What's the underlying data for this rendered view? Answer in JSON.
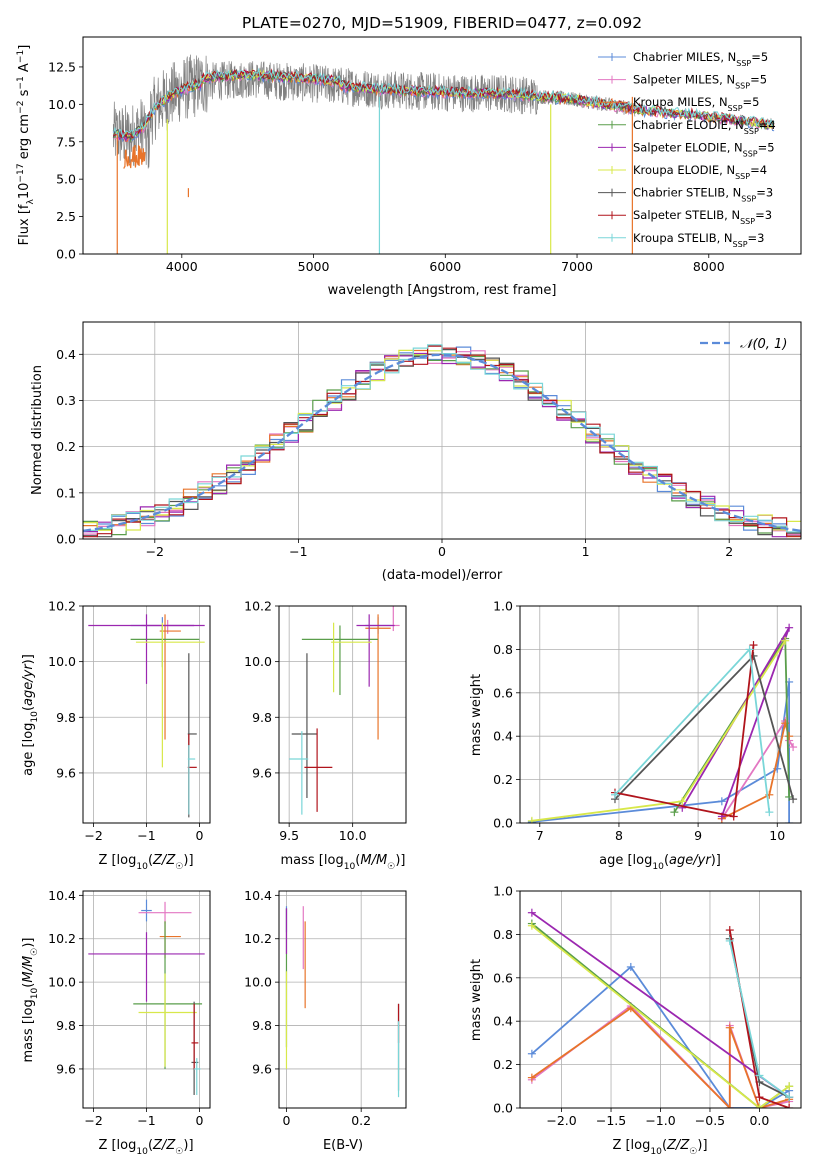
{
  "title": "PLATE=0270, MJD=51909, FIBERID=0477, z=0.092",
  "colors": {
    "models": [
      "#5b8bd9",
      "#e377c2",
      "#e8742a",
      "#5a9e4b",
      "#9b27b0",
      "#d8e84a",
      "#555555",
      "#b0141c",
      "#7ad6d8"
    ],
    "spectrum": "#808080",
    "normal_curve": "#5b8bd9"
  },
  "chart_data": [
    {
      "id": "spectrum",
      "type": "line",
      "title": "PLATE=0270, MJD=51909, FIBERID=0477, z=0.092",
      "xlabel": "wavelength [Angstrom, rest frame]",
      "ylabel": "Flux [f_λ 10^-17 erg cm^-2 s^-1 A^-1]",
      "xlim": [
        3250,
        8700
      ],
      "ylim": [
        0,
        14.5
      ],
      "xticks": [
        4000,
        5000,
        6000,
        7000,
        8000
      ],
      "xtick_labels": [
        "4000",
        "5000",
        "6000",
        "7000",
        "8000"
      ],
      "yticks": [
        0,
        2.5,
        5,
        7.5,
        10,
        12.5
      ],
      "ytick_labels": [
        "0.0",
        "2.5",
        "5.0",
        "7.5",
        "10.0",
        "12.5"
      ],
      "grid": false,
      "legend_position": "top-right",
      "legend": [
        {
          "label": "Chabrier MILES, N",
          "sub": "SSP",
          "suffix": "=5"
        },
        {
          "label": "Salpeter MILES, N",
          "sub": "SSP",
          "suffix": "=5"
        },
        {
          "label": "Kroupa MILES, N",
          "sub": "SSP",
          "suffix": "=5"
        },
        {
          "label": "Chabrier ELODIE, N",
          "sub": "SSP",
          "suffix": "=4"
        },
        {
          "label": "Salpeter ELODIE, N",
          "sub": "SSP",
          "suffix": "=5"
        },
        {
          "label": "Kroupa ELODIE, N",
          "sub": "SSP",
          "suffix": "=4"
        },
        {
          "label": "Chabrier STELIB, N",
          "sub": "SSP",
          "suffix": "=3"
        },
        {
          "label": "Salpeter STELIB, N",
          "sub": "SSP",
          "suffix": "=3"
        },
        {
          "label": "Kroupa STELIB, N",
          "sub": "SSP",
          "suffix": "=3"
        }
      ],
      "continuum": {
        "x": [
          3500,
          3600,
          3700,
          3800,
          3900,
          4000,
          4200,
          4500,
          5000,
          5500,
          6000,
          6500,
          7000,
          7500,
          8000,
          8500
        ],
        "y": [
          8.0,
          7.8,
          8.4,
          9.8,
          10.5,
          11.0,
          11.5,
          11.7,
          11.4,
          11.0,
          10.8,
          10.7,
          10.3,
          9.6,
          9.2,
          8.6
        ]
      }
    },
    {
      "id": "residuals",
      "type": "step",
      "xlabel": "(data-model)/error",
      "ylabel": "Normed distribution",
      "xlim": [
        -2.5,
        2.5
      ],
      "ylim": [
        0,
        0.47
      ],
      "xticks": [
        -2,
        -1,
        0,
        1,
        2
      ],
      "xtick_labels": [
        "−2",
        "−1",
        "0",
        "1",
        "2"
      ],
      "yticks": [
        0,
        0.1,
        0.2,
        0.3,
        0.4
      ],
      "ytick_labels": [
        "0.0",
        "0.1",
        "0.2",
        "0.3",
        "0.4"
      ],
      "grid": true,
      "legend_position": "top-right",
      "legend": [
        "𝒩(0, 1)"
      ],
      "bin_width": 0.1,
      "normal": {
        "mean": 0,
        "sigma": 1
      }
    },
    {
      "id": "age_vs_Z",
      "type": "errorbar",
      "xlabel": "Z [log10(Z/Z☉)]",
      "ylabel": "age [log10(age/yr)]",
      "xlim": [
        -2.2,
        0.2
      ],
      "ylim": [
        9.42,
        10.2
      ],
      "xticks": [
        -2,
        -1,
        0
      ],
      "xtick_labels": [
        "−2",
        "−1",
        "0"
      ],
      "yticks": [
        9.6,
        9.8,
        10.0,
        10.2
      ],
      "ytick_labels": [
        "9.6",
        "9.8",
        "10.0",
        "10.2"
      ],
      "grid": true,
      "points": [
        {
          "x": -0.7,
          "xerr": [
            0.6,
            0.6
          ],
          "y": 10.13,
          "yerr": [
            0.02,
            0.03
          ]
        },
        {
          "x": -0.6,
          "xerr": [
            0.5,
            0.5
          ],
          "y": 10.13,
          "yerr": [
            0.03,
            0.02
          ]
        },
        {
          "x": -0.65,
          "xerr": [
            0.1,
            0.3
          ],
          "y": 10.11,
          "yerr": [
            0.39,
            0.06
          ]
        },
        {
          "x": -0.7,
          "xerr": [
            0.6,
            0.7
          ],
          "y": 10.08,
          "yerr": [
            0.1,
            0.05
          ]
        },
        {
          "x": -1.0,
          "xerr": [
            1.1,
            1.1
          ],
          "y": 10.13,
          "yerr": [
            0.21,
            0.04
          ]
        },
        {
          "x": -0.7,
          "xerr": [
            0.5,
            0.8
          ],
          "y": 10.07,
          "yerr": [
            0.45,
            0.07
          ]
        },
        {
          "x": -0.2,
          "xerr": [
            0.02,
            0.15
          ],
          "y": 9.74,
          "yerr": [
            0.3,
            0.29
          ]
        },
        {
          "x": -0.2,
          "xerr": [
            0.02,
            0.15
          ],
          "y": 9.62,
          "yerr": [
            0.17,
            0.12
          ]
        },
        {
          "x": -0.2,
          "xerr": [
            0.02,
            0.12
          ],
          "y": 9.65,
          "yerr": [
            0.2,
            0.05
          ]
        }
      ]
    },
    {
      "id": "age_vs_mass",
      "type": "errorbar",
      "xlabel": "mass [log10(M/M☉)]",
      "ylabel": "",
      "xlim": [
        9.42,
        10.42
      ],
      "ylim": [
        9.42,
        10.2
      ],
      "xticks": [
        9.5,
        10.0
      ],
      "xtick_labels": [
        "9.5",
        "10.0"
      ],
      "yticks": [
        9.6,
        9.8,
        10.0,
        10.2
      ],
      "ytick_labels": [
        "9.6",
        "9.8",
        "10.0",
        "10.2"
      ],
      "grid": true,
      "points": [
        {
          "x": 10.2,
          "xerr": [
            0.1,
            0.1
          ],
          "y": 10.13,
          "yerr": [
            0.03,
            0.03
          ]
        },
        {
          "x": 10.32,
          "xerr": [
            0.02,
            0.05
          ],
          "y": 10.13,
          "yerr": [
            0.02,
            0.1
          ]
        },
        {
          "x": 10.2,
          "xerr": [
            0.1,
            0.1
          ],
          "y": 10.12,
          "yerr": [
            0.4,
            0.05
          ]
        },
        {
          "x": 9.9,
          "xerr": [
            0.3,
            0.3
          ],
          "y": 10.08,
          "yerr": [
            0.2,
            0.05
          ]
        },
        {
          "x": 10.13,
          "xerr": [
            0.1,
            0.2
          ],
          "y": 10.13,
          "yerr": [
            0.22,
            0.04
          ]
        },
        {
          "x": 9.85,
          "xerr": [
            0.02,
            0.3
          ],
          "y": 10.07,
          "yerr": [
            0.18,
            0.07
          ]
        },
        {
          "x": 9.64,
          "xerr": [
            0.12,
            0.08
          ],
          "y": 9.74,
          "yerr": [
            0.23,
            0.29
          ]
        },
        {
          "x": 9.72,
          "xerr": [
            0.1,
            0.12
          ],
          "y": 9.62,
          "yerr": [
            0.16,
            0.14
          ]
        },
        {
          "x": 9.6,
          "xerr": [
            0.1,
            0.05
          ],
          "y": 9.65,
          "yerr": [
            0.2,
            0.1
          ]
        }
      ]
    },
    {
      "id": "weight_vs_age",
      "type": "line",
      "xlabel": "age [log10(age/yr)]",
      "ylabel": "mass weight",
      "xlim": [
        6.75,
        10.3
      ],
      "ylim": [
        0,
        1.0
      ],
      "xticks": [
        7,
        8,
        9,
        10
      ],
      "xtick_labels": [
        "7",
        "8",
        "9",
        "10"
      ],
      "yticks": [
        0,
        0.2,
        0.4,
        0.6,
        0.8,
        1.0
      ],
      "ytick_labels": [
        "0.0",
        "0.2",
        "0.4",
        "0.6",
        "0.8",
        "1.0"
      ],
      "grid": true,
      "series": [
        {
          "x": [
            6.9,
            9.3,
            10.0,
            10.15,
            10.15
          ],
          "y": [
            0.005,
            0.1,
            0.25,
            0.65,
            0.0
          ]
        },
        {
          "x": [
            9.3,
            10.1,
            10.15,
            10.2
          ],
          "y": [
            0.02,
            0.47,
            0.38,
            0.35
          ]
        },
        {
          "x": [
            9.3,
            9.9,
            10.1,
            10.15
          ],
          "y": [
            0.02,
            0.13,
            0.46,
            0.4
          ]
        },
        {
          "x": [
            8.7,
            10.1,
            10.15
          ],
          "y": [
            0.05,
            0.85,
            0.12
          ]
        },
        {
          "x": [
            9.3,
            10.15,
            8.8
          ],
          "y": [
            0.03,
            0.9,
            0.07
          ]
        },
        {
          "x": [
            6.9,
            8.8,
            10.1
          ],
          "y": [
            0.01,
            0.1,
            0.84
          ]
        },
        {
          "x": [
            7.95,
            9.7,
            10.2
          ],
          "y": [
            0.11,
            0.77,
            0.11
          ]
        },
        {
          "x": [
            7.95,
            9.45,
            9.7
          ],
          "y": [
            0.14,
            0.03,
            0.82
          ]
        },
        {
          "x": [
            7.95,
            9.65,
            9.9
          ],
          "y": [
            0.13,
            0.8,
            0.05
          ]
        }
      ]
    },
    {
      "id": "mass_vs_Z",
      "type": "errorbar",
      "xlabel": "Z [log10(Z/Z☉)]",
      "ylabel": "mass [log10(M/M☉)]",
      "xlim": [
        -2.2,
        0.2
      ],
      "ylim": [
        9.42,
        10.42
      ],
      "xticks": [
        -2,
        -1,
        0
      ],
      "xtick_labels": [
        "−2",
        "−1",
        "0"
      ],
      "yticks": [
        9.6,
        9.8,
        10.0,
        10.2,
        10.4
      ],
      "ytick_labels": [
        "9.6",
        "9.8",
        "10.0",
        "10.2",
        "10.4"
      ],
      "grid": true,
      "points": [
        {
          "x": -1.0,
          "xerr": [
            0.1,
            0.1
          ],
          "y": 10.33,
          "yerr": [
            0.05,
            0.05
          ]
        },
        {
          "x": -0.65,
          "xerr": [
            0.5,
            0.5
          ],
          "y": 10.32,
          "yerr": [
            0.05,
            0.05
          ]
        },
        {
          "x": -0.65,
          "xerr": [
            0.1,
            0.3
          ],
          "y": 10.21,
          "yerr": [
            0.1,
            0.07
          ]
        },
        {
          "x": -0.65,
          "xerr": [
            0.6,
            0.7
          ],
          "y": 9.9,
          "yerr": [
            0.3,
            0.38
          ]
        },
        {
          "x": -1.0,
          "xerr": [
            1.1,
            1.1
          ],
          "y": 10.13,
          "yerr": [
            0.22,
            0.1
          ]
        },
        {
          "x": -0.65,
          "xerr": [
            0.5,
            0.6
          ],
          "y": 9.86,
          "yerr": [
            0.25,
            0.18
          ]
        },
        {
          "x": -0.1,
          "xerr": [
            0.05,
            0.08
          ],
          "y": 9.63,
          "yerr": [
            0.15,
            0.28
          ]
        },
        {
          "x": -0.1,
          "xerr": [
            0.05,
            0.08
          ],
          "y": 9.72,
          "yerr": [
            0.12,
            0.18
          ]
        },
        {
          "x": -0.05,
          "xerr": [
            0.05,
            0.07
          ],
          "y": 9.6,
          "yerr": [
            0.12,
            0.05
          ]
        }
      ]
    },
    {
      "id": "mass_vs_ebv",
      "type": "errorbar",
      "xlabel": "E(B-V)",
      "ylabel": "",
      "xlim": [
        -0.02,
        0.32
      ],
      "ylim": [
        9.42,
        10.42
      ],
      "xticks": [
        0,
        0.2
      ],
      "xtick_labels": [
        "0",
        "0.2"
      ],
      "yticks": [
        9.6,
        9.8,
        10.0,
        10.2,
        10.4
      ],
      "ytick_labels": [
        "9.6",
        "9.8",
        "10.0",
        "10.2",
        "10.4"
      ],
      "grid": true,
      "points": [
        {
          "x": 0.0,
          "xerr": [
            0,
            0
          ],
          "y": 10.28,
          "yerr": [
            0.05,
            0.07
          ]
        },
        {
          "x": 0.045,
          "xerr": [
            0,
            0
          ],
          "y": 10.2,
          "yerr": [
            0.14,
            0.15
          ]
        },
        {
          "x": 0.05,
          "xerr": [
            0,
            0
          ],
          "y": 10.08,
          "yerr": [
            0.2,
            0.2
          ]
        },
        {
          "x": 0.0,
          "xerr": [
            0,
            0
          ],
          "y": 10.0,
          "yerr": [
            0.3,
            0.34
          ]
        },
        {
          "x": 0.0,
          "xerr": [
            0,
            0
          ],
          "y": 10.2,
          "yerr": [
            0.07,
            0.14
          ]
        },
        {
          "x": 0.0,
          "xerr": [
            0,
            0
          ],
          "y": 9.85,
          "yerr": [
            0.25,
            0.2
          ]
        },
        {
          "x": 0.3,
          "xerr": [
            0,
            0
          ],
          "y": 9.7,
          "yerr": [
            0.2,
            0.2
          ]
        },
        {
          "x": 0.3,
          "xerr": [
            0,
            0
          ],
          "y": 9.82,
          "yerr": [
            0.1,
            0.08
          ]
        },
        {
          "x": 0.3,
          "xerr": [
            0,
            0
          ],
          "y": 9.62,
          "yerr": [
            0.15,
            0.2
          ]
        }
      ]
    },
    {
      "id": "weight_vs_Z",
      "type": "line",
      "xlabel": "Z [log10(Z/Z☉)]",
      "ylabel": "mass weight",
      "xlim": [
        -2.42,
        0.42
      ],
      "ylim": [
        0,
        1.0
      ],
      "xticks": [
        -2.0,
        -1.5,
        -1.0,
        -0.5,
        0.0
      ],
      "xtick_labels": [
        "−2.0",
        "−1.5",
        "−1.0",
        "−0.5",
        "0.0"
      ],
      "yticks": [
        0,
        0.2,
        0.4,
        0.6,
        0.8,
        1.0
      ],
      "ytick_labels": [
        "0.0",
        "0.2",
        "0.4",
        "0.6",
        "0.8",
        "1.0"
      ],
      "grid": true,
      "series": [
        {
          "x": [
            -2.3,
            -1.3,
            -0.3,
            0.0,
            0.3
          ],
          "y": [
            0.25,
            0.65,
            0.0,
            0.0,
            0.08
          ]
        },
        {
          "x": [
            -2.3,
            -1.3,
            -0.3,
            -0.3,
            0.0,
            0.3
          ],
          "y": [
            0.13,
            0.47,
            0.0,
            0.38,
            0.0,
            0.03
          ]
        },
        {
          "x": [
            -2.3,
            -1.3,
            -0.3,
            -0.3,
            0.0,
            0.3
          ],
          "y": [
            0.14,
            0.46,
            0.0,
            0.37,
            0.0,
            0.04
          ]
        },
        {
          "x": [
            -2.3,
            0.0,
            0.3
          ],
          "y": [
            0.85,
            0.0,
            0.1
          ]
        },
        {
          "x": [
            -2.3,
            0.3
          ],
          "y": [
            0.9,
            0.05
          ]
        },
        {
          "x": [
            -2.3,
            0.0,
            0.3
          ],
          "y": [
            0.84,
            0.0,
            0.1
          ]
        },
        {
          "x": [
            -0.3,
            0.0,
            0.3
          ],
          "y": [
            0.78,
            0.12,
            0.05
          ]
        },
        {
          "x": [
            -0.3,
            0.0,
            0.3
          ],
          "y": [
            0.82,
            0.05,
            0.0
          ]
        },
        {
          "x": [
            -0.3,
            0.0,
            0.3
          ],
          "y": [
            0.77,
            0.15,
            0.05
          ]
        }
      ]
    }
  ]
}
